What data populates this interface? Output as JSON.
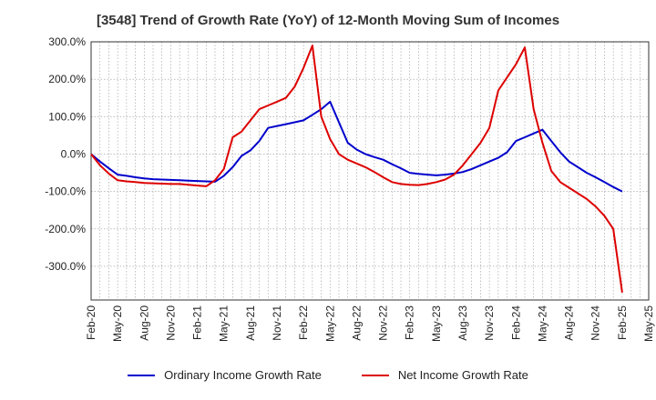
{
  "chart_data": {
    "type": "line",
    "title": "[3548]  Trend of Growth Rate (YoY) of 12-Month Moving Sum of Incomes",
    "xlabel": "",
    "ylabel": "",
    "ylim": [
      -390,
      300
    ],
    "yticks": [
      300,
      200,
      100,
      0,
      -100,
      -200,
      -300
    ],
    "ytick_labels": [
      "300.0%",
      "200.0%",
      "100.0%",
      "0.0%",
      "-100.0%",
      "-200.0%",
      "-300.0%"
    ],
    "x_tick_labels": [
      "Feb-20",
      "May-20",
      "Aug-20",
      "Nov-20",
      "Feb-21",
      "May-21",
      "Aug-21",
      "Nov-21",
      "Feb-22",
      "May-22",
      "Aug-22",
      "Nov-22",
      "Feb-23",
      "May-23",
      "Aug-23",
      "Nov-23",
      "Feb-24",
      "May-24",
      "Aug-24",
      "Nov-24",
      "Feb-25",
      "May-25"
    ],
    "x_range_months": [
      0,
      63
    ],
    "grid": true,
    "legend_position": "bottom",
    "series": [
      {
        "name": "Ordinary Income Growth Rate",
        "color": "#0000cc",
        "x": [
          0,
          1,
          2,
          3,
          4,
          5,
          6,
          7,
          8,
          9,
          10,
          11,
          12,
          13,
          14,
          15,
          16,
          17,
          18,
          19,
          20,
          21,
          22,
          23,
          24,
          25,
          26,
          27,
          28,
          29,
          30,
          31,
          32,
          33,
          34,
          35,
          36,
          37,
          38,
          39,
          40,
          41,
          42,
          43,
          44,
          45,
          46,
          47,
          48,
          49,
          50,
          51,
          52,
          53,
          54,
          55,
          56,
          57,
          58,
          59,
          60
        ],
        "y": [
          0,
          -20,
          -38,
          -55,
          -58,
          -62,
          -65,
          -67,
          -68,
          -69,
          -70,
          -71,
          -72,
          -73,
          -74,
          -58,
          -35,
          -5,
          10,
          35,
          70,
          75,
          80,
          85,
          90,
          105,
          120,
          140,
          85,
          30,
          12,
          0,
          -8,
          -15,
          -27,
          -38,
          -50,
          -53,
          -55,
          -57,
          -55,
          -52,
          -48,
          -40,
          -30,
          -20,
          -10,
          5,
          35,
          45,
          55,
          65,
          35,
          5,
          -20,
          -35,
          -50,
          -62,
          -75,
          -88,
          -100
        ]
      },
      {
        "name": "Net Income Growth Rate",
        "color": "#dd0000",
        "x": [
          0,
          1,
          2,
          3,
          4,
          5,
          6,
          7,
          8,
          9,
          10,
          11,
          12,
          13,
          14,
          15,
          16,
          17,
          18,
          19,
          20,
          21,
          22,
          23,
          24,
          25,
          26,
          27,
          28,
          29,
          30,
          31,
          32,
          33,
          34,
          35,
          36,
          37,
          38,
          39,
          40,
          41,
          42,
          43,
          44,
          45,
          46,
          47,
          48,
          49,
          50,
          51,
          52,
          53,
          54,
          55,
          56,
          57,
          58,
          59,
          60
        ],
        "y": [
          0,
          -30,
          -52,
          -70,
          -73,
          -75,
          -77,
          -78,
          -79,
          -80,
          -80,
          -82,
          -84,
          -86,
          -70,
          -40,
          45,
          60,
          90,
          120,
          130,
          140,
          150,
          180,
          230,
          290,
          100,
          40,
          0,
          -15,
          -25,
          -35,
          -48,
          -62,
          -75,
          -80,
          -82,
          -83,
          -80,
          -75,
          -68,
          -55,
          -30,
          0,
          30,
          70,
          170,
          205,
          240,
          285,
          120,
          30,
          -45,
          -75,
          -90,
          -105,
          -120,
          -140,
          -165,
          -200,
          -370
        ]
      }
    ]
  }
}
